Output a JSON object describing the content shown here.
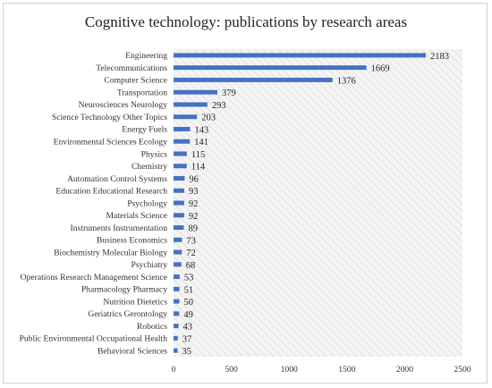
{
  "chart_data": {
    "type": "bar",
    "orientation": "horizontal",
    "title": "Cognitive technology: publications by research areas",
    "categories": [
      "Engineering",
      "Telecommunications",
      "Computer Science",
      "Transportation",
      "Neurosciences Neurology",
      "Science Technology Other Topics",
      "Energy Fuels",
      "Environmental Sciences Ecology",
      "Physics",
      "Chemistry",
      "Automation Control Systems",
      "Education Educational Research",
      "Psychology",
      "Materials Science",
      "Instruments Instrumentation",
      "Business Economics",
      "Biochemistry Molecular Biology",
      "Psychiatry",
      "Operations Research Management Science",
      "Pharmacology Pharmacy",
      "Nutrition Dietetics",
      "Geriatrics Gerontology",
      "Robotics",
      "Public Environmental Occupational Health",
      "Behavioral Sciences"
    ],
    "values": [
      2183,
      1669,
      1376,
      379,
      293,
      203,
      143,
      141,
      115,
      114,
      96,
      93,
      92,
      92,
      89,
      73,
      72,
      68,
      53,
      51,
      50,
      49,
      43,
      37,
      35
    ],
    "xlim": [
      0,
      2500
    ],
    "xticks": [
      0,
      500,
      1000,
      1500,
      2000,
      2500
    ],
    "xlabel": "",
    "ylabel": "",
    "grid": false,
    "legend": "none",
    "data_labels": true,
    "colors": {
      "bar": "#4472c4",
      "plot_fill": "#f3f3f3",
      "hatch": "#d9d9d9"
    }
  }
}
